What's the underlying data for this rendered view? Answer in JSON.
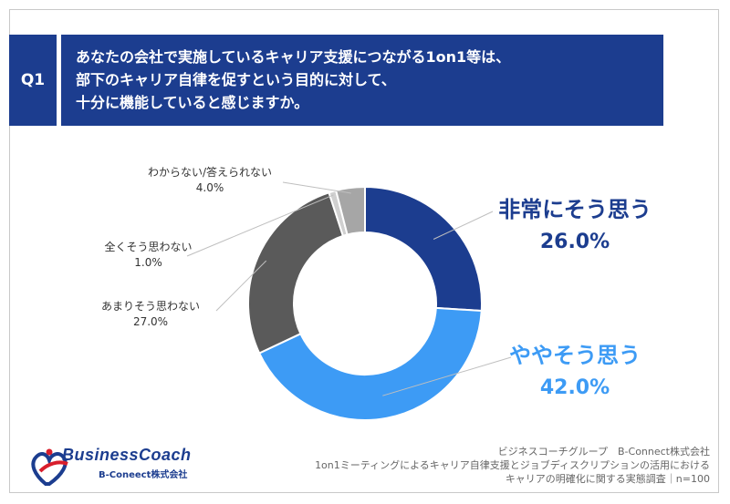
{
  "question": {
    "badge": "Q1",
    "lines": [
      "あなたの会社で実施しているキャリア支援につながる1on1等は、",
      "部下のキャリア自律を促すという目的に対して、",
      "十分に機能していると感じますか。"
    ]
  },
  "chart_data": {
    "type": "donut",
    "unit": "%",
    "slices": [
      {
        "label": "非常にそう思う",
        "value": 26.0,
        "value_text": "26.0%",
        "color": "#1c3d8f"
      },
      {
        "label": "ややそう思う",
        "value": 42.0,
        "value_text": "42.0%",
        "color": "#3d9bf5"
      },
      {
        "label": "あまりそう思わない",
        "value": 27.0,
        "value_text": "27.0%",
        "color": "#5a5a5a"
      },
      {
        "label": "全くそう思わない",
        "value": 1.0,
        "value_text": "1.0%",
        "color": "#d0d0d0"
      },
      {
        "label": "わからない/答えられない",
        "value": 4.0,
        "value_text": "4.0%",
        "color": "#a6a6a6"
      }
    ]
  },
  "logo": {
    "name": "BusinessCoach",
    "subtitle": "B-Coneect株式会社"
  },
  "footer": {
    "lines": [
      "ビジネスコーチグループ　B-Connect株式会社",
      "1on1ミーティングによるキャリア自律支援とジョブディスクリプションの活用における",
      "キャリアの明確化に関する実態調査｜n=100"
    ]
  },
  "colors": {
    "header_bg": "#1c3d8f",
    "label_dark_blue": "#1c3d8f",
    "label_light_blue": "#3d9bf5"
  }
}
